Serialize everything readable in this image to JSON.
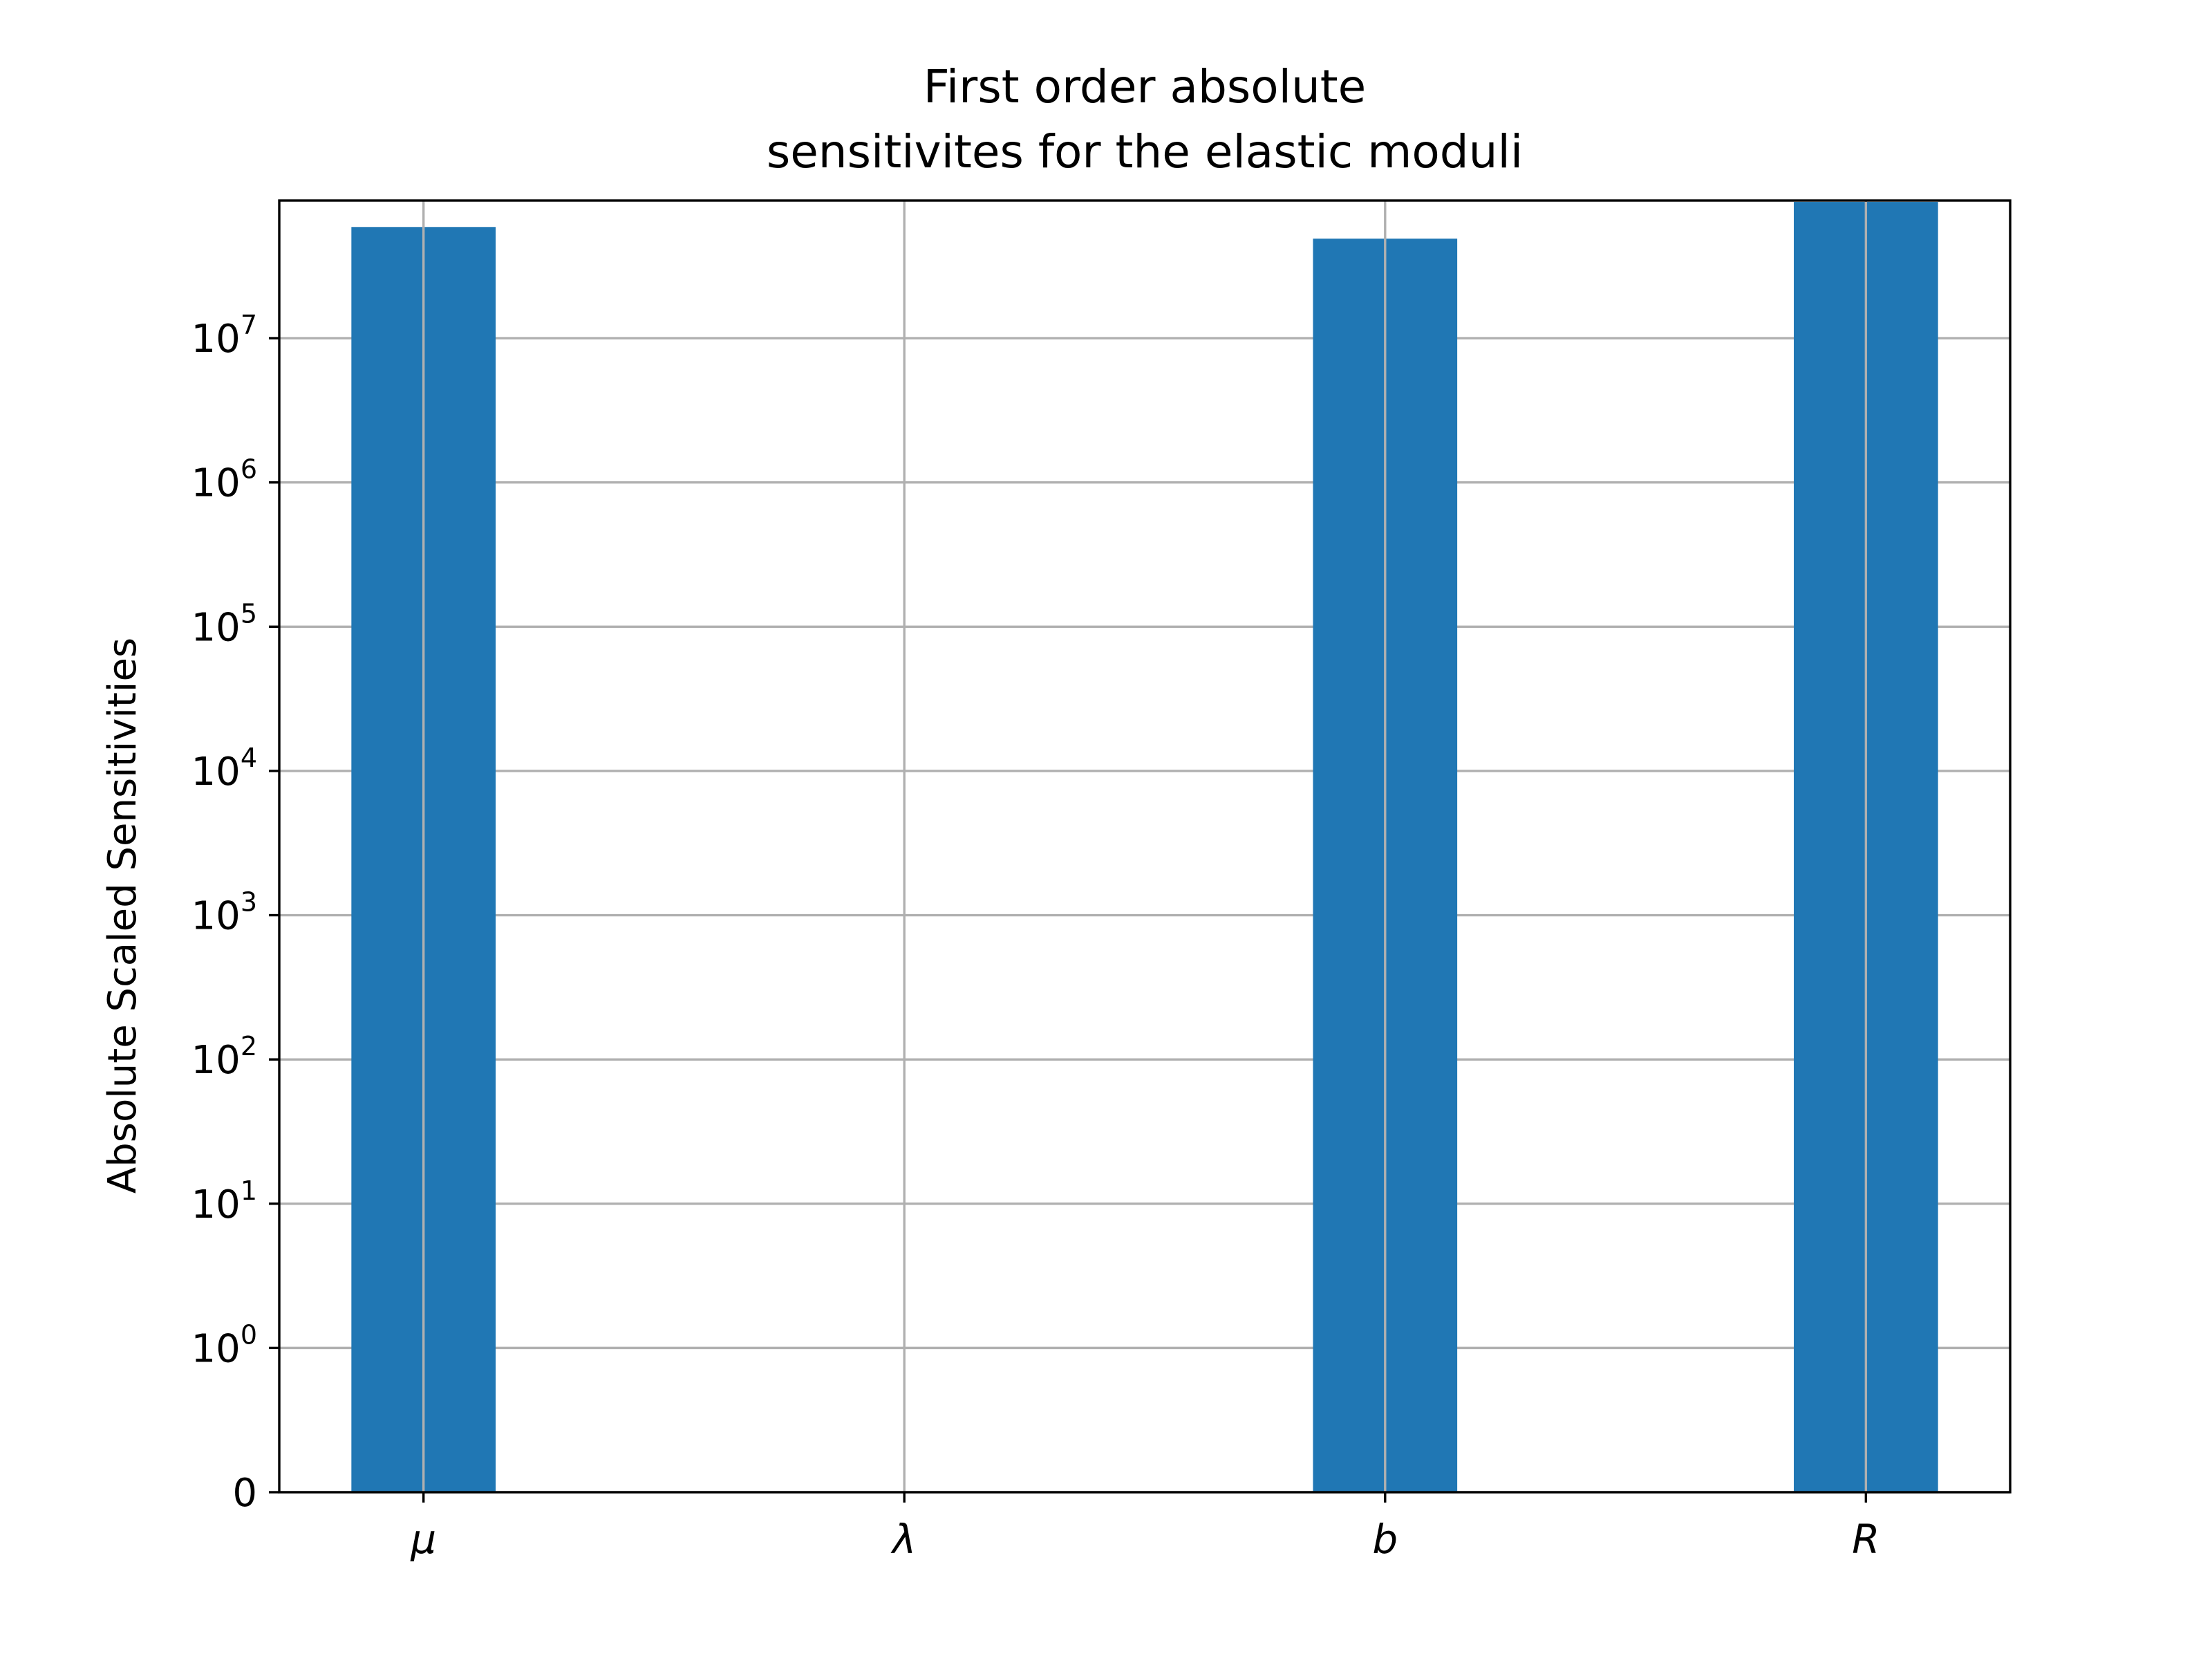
{
  "chart_data": {
    "type": "bar",
    "title_lines": [
      "First order absolute",
      "sensitivites for the elastic moduli"
    ],
    "xlabel": "",
    "ylabel": "Absolute Scaled Sensitivities",
    "yscale": "symlog",
    "ylim": [
      0,
      90000000
    ],
    "grid": true,
    "categories": [
      "μ",
      "λ",
      "b",
      "R"
    ],
    "values": [
      59000000,
      0,
      49000000,
      88000000
    ],
    "yticks": [
      {
        "value": 0,
        "base": "0",
        "exp": ""
      },
      {
        "value": 1,
        "base": "10",
        "exp": "0"
      },
      {
        "value": 10,
        "base": "10",
        "exp": "1"
      },
      {
        "value": 100,
        "base": "10",
        "exp": "2"
      },
      {
        "value": 1000,
        "base": "10",
        "exp": "3"
      },
      {
        "value": 10000,
        "base": "10",
        "exp": "4"
      },
      {
        "value": 100000,
        "base": "10",
        "exp": "5"
      },
      {
        "value": 1000000,
        "base": "10",
        "exp": "6"
      },
      {
        "value": 10000000,
        "base": "10",
        "exp": "7"
      }
    ],
    "colors": {
      "bar": "#2077b4",
      "grid": "#b0b0b0",
      "axes": "#000000"
    }
  }
}
